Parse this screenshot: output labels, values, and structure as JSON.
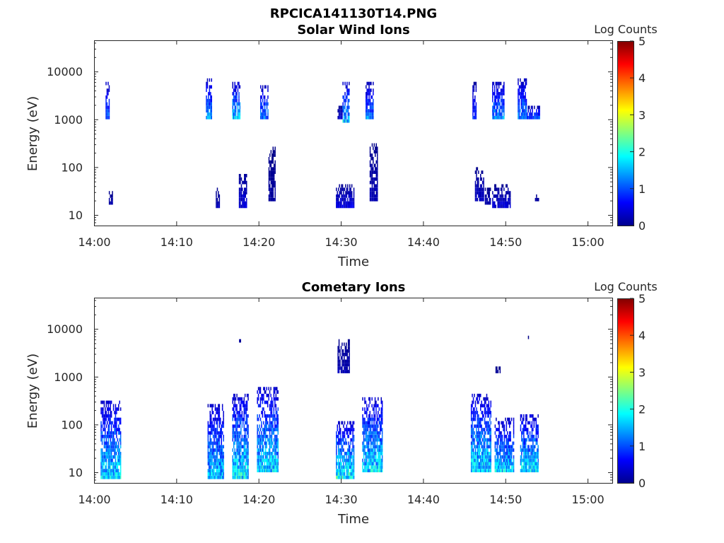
{
  "figure_title": "RPCICA141130T14.PNG",
  "colors": {
    "colormap": "jet",
    "axis": "#262626",
    "background": "#ffffff"
  },
  "chart_data": [
    {
      "type": "heatmap",
      "title": "Solar Wind Ions",
      "xlabel": "Time",
      "ylabel": "Energy (eV)",
      "y_scale": "log",
      "xlim_minutes_after_1400": [
        0,
        63
      ],
      "ylim": [
        6,
        45000
      ],
      "x_tick_labels": [
        "14:00",
        "14:10",
        "14:20",
        "14:30",
        "14:40",
        "14:50",
        "15:00"
      ],
      "x_tick_minutes": [
        0,
        10,
        20,
        30,
        40,
        50,
        60
      ],
      "y_ticks": [
        10,
        100,
        1000,
        10000
      ],
      "y_tick_labels": [
        "10",
        "100",
        "1000",
        "10000"
      ],
      "colorbar": {
        "label": "Log Counts",
        "range": [
          0,
          5
        ],
        "ticks": [
          "0",
          "1",
          "2",
          "3",
          "4",
          "5"
        ]
      },
      "clusters": [
        {
          "t0": 1.4,
          "t1": 1.8,
          "e0": 900,
          "e1": 6000,
          "peak": 1.3
        },
        {
          "t0": 1.8,
          "t1": 2.3,
          "e0": 14,
          "e1": 28,
          "peak": 0.3
        },
        {
          "t0": 13.6,
          "t1": 14.3,
          "e0": 1000,
          "e1": 6500,
          "peak": 1.5
        },
        {
          "t0": 14.8,
          "t1": 15.3,
          "e0": 13,
          "e1": 35,
          "peak": 0.3
        },
        {
          "t0": 16.8,
          "t1": 17.7,
          "e0": 850,
          "e1": 5500,
          "peak": 1.9
        },
        {
          "t0": 17.6,
          "t1": 18.5,
          "e0": 13,
          "e1": 70,
          "peak": 0.5
        },
        {
          "t0": 20.2,
          "t1": 21.1,
          "e0": 950,
          "e1": 5000,
          "peak": 1.4
        },
        {
          "t0": 21.2,
          "t1": 22.0,
          "e0": 18,
          "e1": 240,
          "peak": 0.2
        },
        {
          "t0": 29.6,
          "t1": 30.2,
          "e0": 900,
          "e1": 1800,
          "peak": 0.5
        },
        {
          "t0": 30.2,
          "t1": 31.0,
          "e0": 800,
          "e1": 5500,
          "peak": 1.9
        },
        {
          "t0": 29.4,
          "t1": 31.6,
          "e0": 13,
          "e1": 38,
          "peak": 0.6
        },
        {
          "t0": 33.0,
          "t1": 33.9,
          "e0": 1000,
          "e1": 5500,
          "peak": 1.4
        },
        {
          "t0": 33.5,
          "t1": 34.5,
          "e0": 18,
          "e1": 300,
          "peak": 0.3
        },
        {
          "t0": 46.0,
          "t1": 46.4,
          "e0": 850,
          "e1": 5500,
          "peak": 1.0
        },
        {
          "t0": 46.3,
          "t1": 47.4,
          "e0": 18,
          "e1": 85,
          "peak": 0.4
        },
        {
          "t0": 47.5,
          "t1": 48.2,
          "e0": 15,
          "e1": 35,
          "peak": 0.3
        },
        {
          "t0": 48.4,
          "t1": 49.8,
          "e0": 850,
          "e1": 5500,
          "peak": 1.6
        },
        {
          "t0": 48.4,
          "t1": 50.6,
          "e0": 13,
          "e1": 38,
          "peak": 0.5
        },
        {
          "t0": 51.5,
          "t1": 52.6,
          "e0": 1000,
          "e1": 6500,
          "peak": 1.5
        },
        {
          "t0": 52.6,
          "t1": 54.2,
          "e0": 950,
          "e1": 1700,
          "peak": 1.2
        },
        {
          "t0": 53.6,
          "t1": 54.0,
          "e0": 18,
          "e1": 26,
          "peak": 0.2
        }
      ]
    },
    {
      "type": "heatmap",
      "title": "Cometary Ions",
      "xlabel": "Time",
      "ylabel": "Energy (eV)",
      "y_scale": "log",
      "xlim_minutes_after_1400": [
        0,
        63
      ],
      "ylim": [
        6,
        45000
      ],
      "x_tick_labels": [
        "14:00",
        "14:10",
        "14:20",
        "14:30",
        "14:40",
        "14:50",
        "15:00"
      ],
      "x_tick_minutes": [
        0,
        10,
        20,
        30,
        40,
        50,
        60
      ],
      "y_ticks": [
        10,
        100,
        1000,
        10000
      ],
      "y_tick_labels": [
        "10",
        "100",
        "1000",
        "10000"
      ],
      "colorbar": {
        "label": "Log Counts",
        "range": [
          0,
          5
        ],
        "ticks": [
          "0",
          "1",
          "2",
          "3",
          "4",
          "5"
        ]
      },
      "clusters": [
        {
          "t0": 0.8,
          "t1": 3.2,
          "e0": 7,
          "e1": 300,
          "peak": 2.0
        },
        {
          "t0": 13.8,
          "t1": 15.8,
          "e0": 7,
          "e1": 250,
          "peak": 1.8
        },
        {
          "t0": 16.8,
          "t1": 18.8,
          "e0": 7,
          "e1": 420,
          "peak": 2.1
        },
        {
          "t0": 19.8,
          "t1": 22.4,
          "e0": 10,
          "e1": 550,
          "peak": 2.0
        },
        {
          "t0": 29.4,
          "t1": 31.6,
          "e0": 7,
          "e1": 100,
          "peak": 2.2
        },
        {
          "t0": 32.6,
          "t1": 35.0,
          "e0": 10,
          "e1": 350,
          "peak": 2.0
        },
        {
          "t0": 45.8,
          "t1": 48.3,
          "e0": 10,
          "e1": 400,
          "peak": 2.0
        },
        {
          "t0": 48.7,
          "t1": 51.0,
          "e0": 10,
          "e1": 120,
          "peak": 1.9
        },
        {
          "t0": 51.8,
          "t1": 54.0,
          "e0": 10,
          "e1": 160,
          "peak": 2.0
        },
        {
          "t0": 29.6,
          "t1": 31.1,
          "e0": 1100,
          "e1": 6000,
          "peak": 0.3
        },
        {
          "t0": 17.5,
          "t1": 17.8,
          "e0": 5000,
          "e1": 5800,
          "peak": 0.2
        },
        {
          "t0": 48.8,
          "t1": 49.4,
          "e0": 1100,
          "e1": 1400,
          "peak": 0.2
        },
        {
          "t0": 52.5,
          "t1": 52.8,
          "e0": 5500,
          "e1": 6200,
          "peak": 0.2
        }
      ]
    }
  ]
}
